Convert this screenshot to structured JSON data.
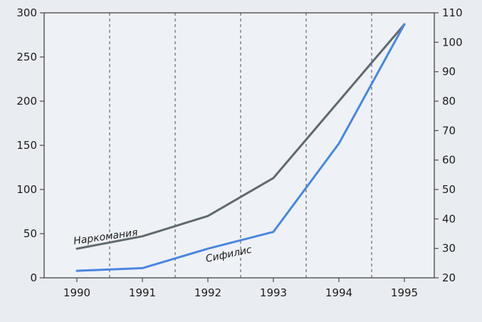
{
  "chart_data": {
    "type": "line",
    "x": [
      1990,
      1991,
      1992,
      1993,
      1994,
      1995
    ],
    "x_tick_labels": [
      "1990",
      "1991",
      "1992",
      "1993",
      "1994",
      "1995"
    ],
    "left_axis": {
      "range": [
        0,
        300
      ],
      "ticks": [
        0,
        50,
        100,
        150,
        200,
        250,
        300
      ],
      "tick_labels": [
        "0",
        "50",
        "100",
        "150",
        "200",
        "250",
        "300"
      ]
    },
    "right_axis": {
      "range": [
        20,
        110
      ],
      "ticks": [
        20,
        30,
        40,
        50,
        60,
        70,
        80,
        90,
        100,
        110
      ],
      "tick_labels": [
        "20",
        "30",
        "40",
        "50",
        "60",
        "70",
        "80",
        "90",
        "100",
        "110"
      ]
    },
    "series": [
      {
        "name": "Наркомания",
        "axis": "left",
        "color": "#5f6a6e",
        "values": [
          33,
          47,
          70,
          113,
          200,
          287
        ]
      },
      {
        "name": "Сифилис",
        "axis": "left",
        "color": "#4a86e0",
        "values": [
          8,
          11,
          33,
          52,
          152,
          287
        ]
      }
    ],
    "grid": {
      "vertical_dashed": true,
      "horizontal": false
    },
    "legend": "inline labels"
  }
}
